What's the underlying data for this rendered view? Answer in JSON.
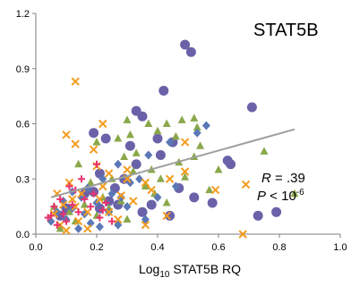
{
  "chart_data": {
    "type": "scatter",
    "title": "STAT5B",
    "xlabel_prefix": "Log",
    "xlabel_sub": "10",
    "xlabel_suffix": " STAT5B RQ",
    "ylabel": "",
    "xlim": [
      0,
      1
    ],
    "ylim": [
      0,
      1.2
    ],
    "xticks": [
      0,
      0.2,
      0.4,
      0.6,
      0.8,
      1.0
    ],
    "xtick_labels": [
      "0.0",
      "0.2",
      "0.4",
      "0.6",
      "0.8",
      "1.0"
    ],
    "yticks": [
      0,
      0.3,
      0.6,
      0.9,
      1.2
    ],
    "ytick_labels": [
      "0.0",
      "0.3",
      "0.6",
      "0.9",
      "1.2"
    ],
    "grid": false,
    "annotation": {
      "r_label": "R",
      "r_value": " = .39",
      "p_label": "P",
      "p_value": " < 10",
      "p_exponent": "-6"
    },
    "trendline": {
      "x": [
        0.05,
        0.85
      ],
      "y": [
        0.2,
        0.57
      ],
      "color": "#9e9e9e"
    },
    "series": [
      {
        "marker": "circle",
        "color": "#6a62a8",
        "points": [
          [
            0.49,
            1.03
          ],
          [
            0.51,
            0.99
          ],
          [
            0.42,
            0.78
          ],
          [
            0.71,
            0.69
          ],
          [
            0.33,
            0.67
          ],
          [
            0.35,
            0.64
          ],
          [
            0.19,
            0.55
          ],
          [
            0.23,
            0.52
          ],
          [
            0.31,
            0.48
          ],
          [
            0.4,
            0.52
          ],
          [
            0.45,
            0.5
          ],
          [
            0.41,
            0.43
          ],
          [
            0.63,
            0.4
          ],
          [
            0.64,
            0.38
          ],
          [
            0.33,
            0.38
          ],
          [
            0.21,
            0.33
          ],
          [
            0.29,
            0.3
          ],
          [
            0.47,
            0.25
          ],
          [
            0.19,
            0.23
          ],
          [
            0.26,
            0.25
          ],
          [
            0.16,
            0.22
          ],
          [
            0.52,
            0.2
          ],
          [
            0.35,
            0.12
          ],
          [
            0.44,
            0.1
          ],
          [
            0.73,
            0.1
          ],
          [
            0.79,
            0.12
          ],
          [
            0.21,
            0.14
          ],
          [
            0.24,
            0.18
          ],
          [
            0.58,
            0.17
          ],
          [
            0.1,
            0.14
          ],
          [
            0.08,
            0.1
          ],
          [
            0.38,
            0.16
          ],
          [
            0.27,
            0.16
          ]
        ]
      },
      {
        "marker": "triangle",
        "color": "#8aa84a",
        "points": [
          [
            0.3,
            0.62
          ],
          [
            0.37,
            0.6
          ],
          [
            0.43,
            0.6
          ],
          [
            0.48,
            0.62
          ],
          [
            0.52,
            0.63
          ],
          [
            0.2,
            0.5
          ],
          [
            0.27,
            0.52
          ],
          [
            0.31,
            0.54
          ],
          [
            0.4,
            0.56
          ],
          [
            0.46,
            0.53
          ],
          [
            0.53,
            0.58
          ],
          [
            0.29,
            0.42
          ],
          [
            0.33,
            0.44
          ],
          [
            0.38,
            0.35
          ],
          [
            0.47,
            0.39
          ],
          [
            0.52,
            0.42
          ],
          [
            0.6,
            0.35
          ],
          [
            0.75,
            0.45
          ],
          [
            0.85,
            0.22
          ],
          [
            0.14,
            0.38
          ],
          [
            0.18,
            0.28
          ],
          [
            0.25,
            0.3
          ],
          [
            0.32,
            0.34
          ],
          [
            0.36,
            0.26
          ],
          [
            0.49,
            0.31
          ],
          [
            0.57,
            0.24
          ],
          [
            0.22,
            0.2
          ],
          [
            0.16,
            0.16
          ],
          [
            0.06,
            0.15
          ],
          [
            0.11,
            0.12
          ],
          [
            0.2,
            0.1
          ],
          [
            0.3,
            0.08
          ],
          [
            0.39,
            0.22
          ],
          [
            0.43,
            0.17
          ],
          [
            0.24,
            0.14
          ],
          [
            0.41,
            0.3
          ],
          [
            0.54,
            0.48
          ],
          [
            0.08,
            0.03
          ],
          [
            0.13,
            0.07
          ],
          [
            0.28,
            0.18
          ]
        ]
      },
      {
        "marker": "diamond",
        "color": "#5b78b6",
        "points": [
          [
            0.56,
            0.59
          ],
          [
            0.53,
            0.55
          ],
          [
            0.44,
            0.5
          ],
          [
            0.37,
            0.43
          ],
          [
            0.27,
            0.38
          ],
          [
            0.22,
            0.3
          ],
          [
            0.17,
            0.25
          ],
          [
            0.12,
            0.23
          ],
          [
            0.09,
            0.18
          ],
          [
            0.15,
            0.2
          ],
          [
            0.2,
            0.17
          ],
          [
            0.25,
            0.22
          ],
          [
            0.31,
            0.28
          ],
          [
            0.34,
            0.3
          ],
          [
            0.28,
            0.2
          ],
          [
            0.24,
            0.12
          ],
          [
            0.18,
            0.06
          ],
          [
            0.14,
            0.03
          ],
          [
            0.1,
            0.08
          ],
          [
            0.07,
            0.12
          ],
          [
            0.12,
            0.14
          ],
          [
            0.16,
            0.11
          ],
          [
            0.3,
            0.15
          ],
          [
            0.4,
            0.2
          ],
          [
            0.46,
            0.26
          ],
          [
            0.36,
            0.08
          ],
          [
            0.21,
            0.04
          ],
          [
            0.05,
            0.07
          ],
          [
            0.27,
            0.05
          ]
        ]
      },
      {
        "marker": "x",
        "color": "#f39c1f",
        "points": [
          [
            0.13,
            0.83
          ],
          [
            0.1,
            0.54
          ],
          [
            0.13,
            0.49
          ],
          [
            0.19,
            0.46
          ],
          [
            0.22,
            0.6
          ],
          [
            0.2,
            0.37
          ],
          [
            0.24,
            0.33
          ],
          [
            0.3,
            0.3
          ],
          [
            0.36,
            0.28
          ],
          [
            0.38,
            0.24
          ],
          [
            0.44,
            0.3
          ],
          [
            0.49,
            0.34
          ],
          [
            0.49,
            0.5
          ],
          [
            0.59,
            0.24
          ],
          [
            0.69,
            0.27
          ],
          [
            0.43,
            0.1
          ],
          [
            0.24,
            0.12
          ],
          [
            0.15,
            0.22
          ],
          [
            0.11,
            0.28
          ],
          [
            0.09,
            0.16
          ],
          [
            0.06,
            0.11
          ],
          [
            0.14,
            0.07
          ],
          [
            0.17,
            0.03
          ],
          [
            0.21,
            0.19
          ],
          [
            0.28,
            0.21
          ],
          [
            0.32,
            0.18
          ],
          [
            0.27,
            0.08
          ],
          [
            0.36,
            0.05
          ],
          [
            0.68,
            0.0
          ],
          [
            0.08,
            0.05
          ],
          [
            0.12,
            0.19
          ],
          [
            0.17,
            0.12
          ],
          [
            0.1,
            0.02
          ],
          [
            0.3,
            0.35
          ],
          [
            0.22,
            0.26
          ],
          [
            0.13,
            0.15
          ],
          [
            0.07,
            0.22
          ]
        ]
      },
      {
        "marker": "plus",
        "color": "#e8336f",
        "points": [
          [
            0.2,
            0.38
          ],
          [
            0.15,
            0.3
          ],
          [
            0.11,
            0.26
          ],
          [
            0.08,
            0.19
          ],
          [
            0.06,
            0.15
          ],
          [
            0.05,
            0.1
          ],
          [
            0.09,
            0.11
          ],
          [
            0.12,
            0.16
          ],
          [
            0.14,
            0.12
          ],
          [
            0.16,
            0.19
          ],
          [
            0.18,
            0.15
          ],
          [
            0.21,
            0.09
          ],
          [
            0.25,
            0.07
          ],
          [
            0.22,
            0.13
          ],
          [
            0.07,
            0.05
          ],
          [
            0.1,
            0.07
          ],
          [
            0.19,
            0.22
          ],
          [
            0.23,
            0.17
          ],
          [
            0.04,
            0.09
          ],
          [
            0.13,
            0.24
          ]
        ]
      }
    ]
  }
}
